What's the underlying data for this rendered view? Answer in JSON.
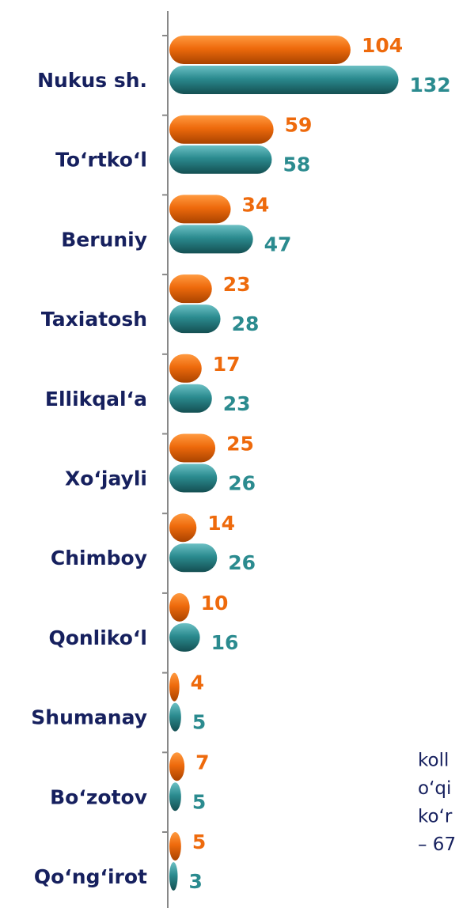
{
  "chart_data": {
    "type": "hbar",
    "categories": [
      "Nukus sh.",
      "To‘rtko‘l",
      "Beruniy",
      "Taxiatosh",
      "Ellikqal‘a",
      "Xo‘jayli",
      "Chimboy",
      "Qonliko‘l",
      "Shumanay",
      "Bo‘zotov",
      "Qo‘ng‘irot"
    ],
    "series": [
      {
        "color": "#ee6a0c",
        "values": [
          104,
          59,
          34,
          23,
          17,
          25,
          14,
          10,
          4,
          7,
          5
        ]
      },
      {
        "color": "#2b8b8f",
        "values": [
          132,
          58,
          47,
          28,
          23,
          26,
          26,
          16,
          5,
          5,
          3
        ]
      }
    ],
    "xlim": [
      0,
      135
    ],
    "annotations": [
      "koll",
      "o‘qi",
      "ko‘r",
      "– 67"
    ]
  }
}
